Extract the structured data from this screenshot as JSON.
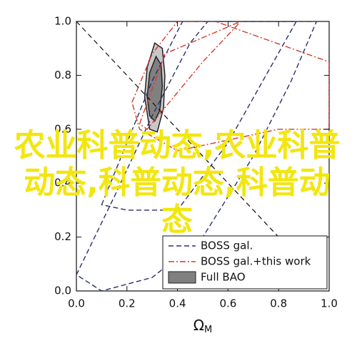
{
  "chart_data": {
    "type": "contour",
    "x_label": {
      "symbol": "Ω",
      "subscript": "M"
    },
    "xlim": [
      0.0,
      1.0
    ],
    "ylim": [
      0.0,
      1.0
    ],
    "xticks": [
      {
        "value": 0,
        "label": "0.0"
      },
      0.2,
      0.4,
      0.6,
      0.8,
      {
        "value": 1,
        "label": "1.0"
      }
    ],
    "yticks": [
      {
        "value": 0,
        "label": "0.0"
      },
      0.2,
      0.4,
      0.6,
      0.8,
      {
        "value": 1,
        "label": "1.0"
      }
    ],
    "reference_line": {
      "x": [
        0,
        1
      ],
      "y": [
        1,
        0
      ],
      "color": "#111111"
    },
    "series": [
      {
        "name": "BOSS gal.",
        "color": "#2b2f6e",
        "style": "dashed",
        "contours": [
          {
            "x": [
              0.0,
              0.15,
              0.3,
              0.45,
              0.52,
              0.95,
              0.85,
              0.7,
              0.5,
              0.3,
              0.1,
              0.0
            ],
            "y": [
              0.06,
              0.35,
              0.65,
              0.92,
              1.0,
              1.0,
              0.78,
              0.5,
              0.2,
              0.05,
              0.0,
              0.06
            ]
          },
          {
            "x": [
              0.1,
              0.2,
              0.3,
              0.42,
              0.87,
              0.75,
              0.6,
              0.4,
              0.2,
              0.1
            ],
            "y": [
              0.32,
              0.55,
              0.78,
              1.0,
              1.0,
              0.8,
              0.55,
              0.3,
              0.3,
              0.32
            ]
          }
        ]
      },
      {
        "name": "BOSS gal.+this work",
        "color": "#d63a2a",
        "style": "dashdot",
        "contours": [
          {
            "x": [
              0.22,
              0.3,
              0.4,
              0.55,
              1.0,
              1.0,
              0.8,
              0.6,
              0.4,
              0.25,
              0.22
            ],
            "y": [
              0.7,
              0.88,
              1.0,
              1.0,
              0.85,
              0.6,
              0.6,
              0.56,
              0.52,
              0.6,
              0.7
            ]
          },
          {
            "x": [
              0.25,
              0.3,
              0.35,
              0.65,
              0.5,
              0.35,
              0.28,
              0.25
            ],
            "y": [
              0.62,
              0.75,
              0.88,
              1.0,
              0.85,
              0.68,
              0.6,
              0.62
            ]
          }
        ]
      },
      {
        "name": "Full BAO",
        "color": "#808080",
        "style": "filled",
        "contours": [
          {
            "x": [
              0.27,
              0.28,
              0.31,
              0.34,
              0.35,
              0.345,
              0.32,
              0.29,
              0.27
            ],
            "y": [
              0.72,
              0.83,
              0.92,
              0.9,
              0.8,
              0.68,
              0.59,
              0.6,
              0.72
            ]
          },
          {
            "x": [
              0.28,
              0.29,
              0.315,
              0.335,
              0.34,
              0.33,
              0.31,
              0.29,
              0.28
            ],
            "y": [
              0.72,
              0.81,
              0.87,
              0.84,
              0.76,
              0.67,
              0.63,
              0.65,
              0.72
            ]
          }
        ]
      }
    ],
    "annotation": "农业科普动态,农业科普动态,科普动态,科普动态"
  }
}
